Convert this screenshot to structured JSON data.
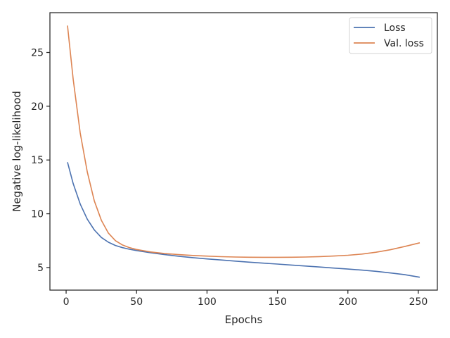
{
  "chart_data": {
    "type": "line",
    "title": "",
    "xlabel": "Epochs",
    "ylabel": "Negative log-likelihood",
    "xlim": [
      -11.5,
      263.5
    ],
    "ylim": [
      2.9,
      28.7
    ],
    "xticks": [
      0,
      50,
      100,
      150,
      200,
      250
    ],
    "yticks": [
      5,
      10,
      15,
      20,
      25
    ],
    "grid": false,
    "legend": "top-right",
    "x": [
      1,
      5,
      10,
      15,
      20,
      25,
      30,
      35,
      40,
      45,
      50,
      60,
      70,
      80,
      90,
      100,
      110,
      120,
      130,
      140,
      150,
      160,
      170,
      180,
      190,
      200,
      210,
      220,
      230,
      240,
      251
    ],
    "series": [
      {
        "name": "Loss",
        "color": "#4c72b0",
        "values": [
          14.8,
          12.8,
          10.9,
          9.5,
          8.5,
          7.8,
          7.35,
          7.05,
          6.85,
          6.7,
          6.58,
          6.38,
          6.2,
          6.05,
          5.92,
          5.8,
          5.7,
          5.6,
          5.5,
          5.41,
          5.32,
          5.23,
          5.14,
          5.05,
          4.95,
          4.86,
          4.76,
          4.65,
          4.5,
          4.35,
          4.1
        ]
      },
      {
        "name": "Val. loss",
        "color": "#dd8452",
        "values": [
          27.5,
          22.5,
          17.5,
          13.9,
          11.2,
          9.4,
          8.2,
          7.5,
          7.1,
          6.85,
          6.68,
          6.45,
          6.3,
          6.2,
          6.12,
          6.06,
          6.01,
          5.98,
          5.96,
          5.95,
          5.95,
          5.96,
          5.98,
          6.02,
          6.07,
          6.14,
          6.25,
          6.42,
          6.65,
          6.95,
          7.3
        ]
      }
    ]
  }
}
